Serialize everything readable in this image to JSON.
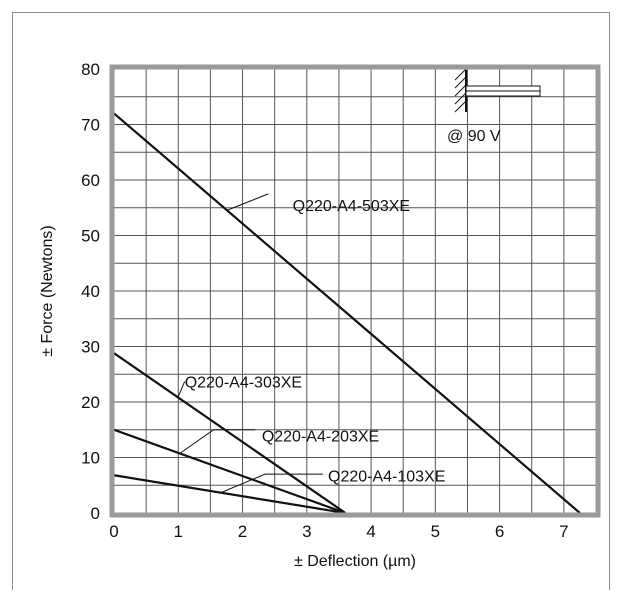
{
  "chart_data": {
    "type": "line",
    "xlabel": "±  Deflection  (µm)",
    "ylabel": "±  Force  (Newtons)",
    "xlim": [
      0,
      7.5
    ],
    "ylim": [
      0,
      80
    ],
    "x_ticks": [
      "0",
      "1",
      "2",
      "3",
      "4",
      "5",
      "6",
      "7"
    ],
    "y_ticks": [
      "0",
      "10",
      "20",
      "30",
      "40",
      "50",
      "60",
      "70",
      "80"
    ],
    "grid": true,
    "annotation": "@ 90 V",
    "series": [
      {
        "name": "Q220-A4-503XE",
        "x": [
          0,
          7.25
        ],
        "y": [
          72,
          0
        ]
      },
      {
        "name": "Q220-A4-303XE",
        "x": [
          0,
          3.6
        ],
        "y": [
          28.8,
          0
        ]
      },
      {
        "name": "Q220-A4-203XE",
        "x": [
          0,
          3.6
        ],
        "y": [
          15,
          0
        ]
      },
      {
        "name": "Q220-A4-103XE",
        "x": [
          0,
          3.6
        ],
        "y": [
          6.8,
          0
        ]
      }
    ]
  },
  "icons": {
    "inset": "cantilever-bender-icon"
  }
}
